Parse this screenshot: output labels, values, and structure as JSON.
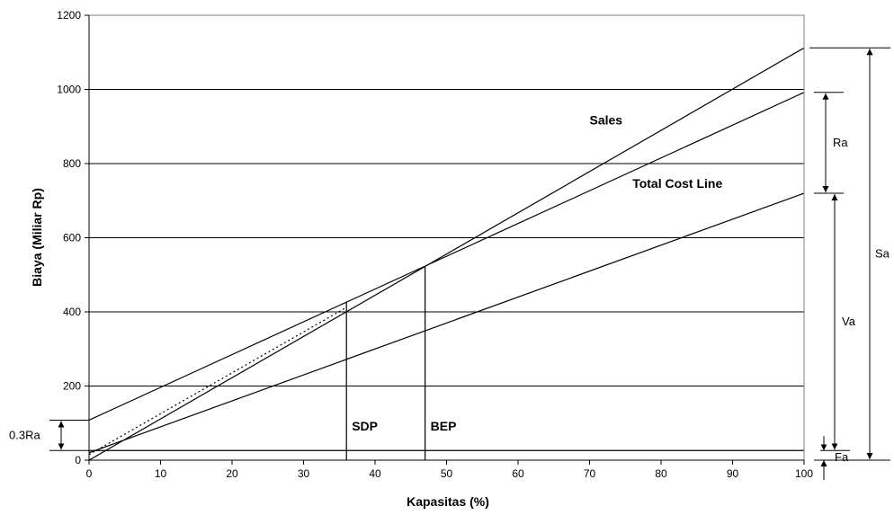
{
  "chart_data": {
    "type": "line",
    "title": "",
    "xlabel": "Kapasitas (%)",
    "ylabel": "Biaya (Miliar Rp)",
    "xlim": [
      0,
      100
    ],
    "ylim": [
      0,
      1200
    ],
    "x_ticks": [
      0,
      10,
      20,
      30,
      40,
      50,
      60,
      70,
      80,
      90,
      100
    ],
    "y_ticks": [
      0,
      200,
      400,
      600,
      800,
      1000,
      1200
    ],
    "grid": "horizontal",
    "lines": [
      {
        "name": "Sales",
        "x": [
          0,
          100
        ],
        "y": [
          0,
          1112
        ]
      },
      {
        "name": "Total Cost Line",
        "x": [
          0,
          100
        ],
        "y": [
          108,
          992
        ]
      },
      {
        "x": [
          0,
          100
        ],
        "y": [
          20,
          720
        ]
      },
      {
        "x": [
          0,
          100
        ],
        "y": [
          26,
          26
        ]
      }
    ],
    "dotted_line": {
      "x": [
        0,
        36
      ],
      "y": [
        15,
        412
      ]
    },
    "verticals": [
      {
        "label": "SDP",
        "x": 36,
        "y_top": 428
      },
      {
        "label": "BEP",
        "x": 47,
        "y_top": 524
      }
    ],
    "annotations": [
      {
        "text": "Sales",
        "x": 70,
        "y": 905
      },
      {
        "text": "Total Cost Line",
        "x": 76,
        "y": 735
      }
    ],
    "dimensions": [
      {
        "label": "Sa",
        "from": 0,
        "to": 1112
      },
      {
        "label": "Ra",
        "from": 720,
        "to": 992
      },
      {
        "label": "Va",
        "from": 26,
        "to": 720
      },
      {
        "label": "Fa",
        "from": 0,
        "to": 26
      },
      {
        "label": "0.3Ra",
        "from": 26,
        "to": 108
      }
    ]
  }
}
